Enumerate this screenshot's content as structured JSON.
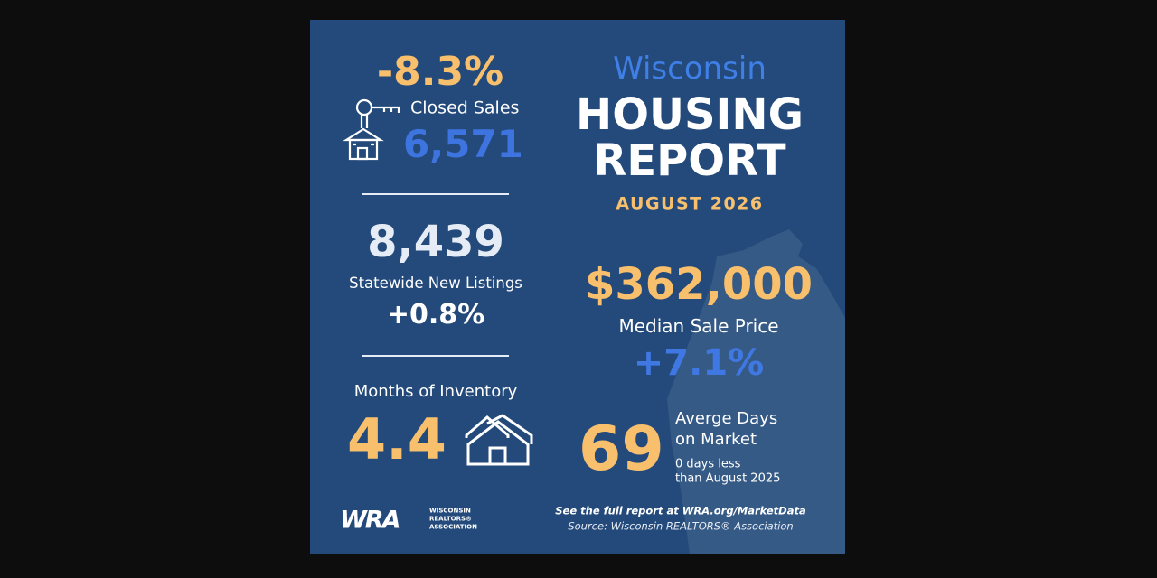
{
  "left": {
    "closed_sales": {
      "change": "-8.3%",
      "label": "Closed Sales",
      "value": "6,571"
    },
    "new_listings": {
      "value": "8,439",
      "label": "Statewide New Listings",
      "change": "+0.8%"
    },
    "inventory": {
      "label": "Months of Inventory",
      "value": "4.4"
    }
  },
  "header": {
    "region": "Wisconsin",
    "title_lines": [
      "HOUSING",
      "REPORT"
    ],
    "period": "AUGUST 2026"
  },
  "right": {
    "median_price": {
      "value": "$362,000",
      "label": "Median Sale Price",
      "change": "+7.1%"
    },
    "days_on_market": {
      "value": "69",
      "label_lines": [
        "Averge Days",
        "on Market"
      ],
      "note_lines": [
        "0 days less",
        "than August 2025"
      ]
    }
  },
  "footer": {
    "link_text": "See the full report at WRA.org/MarketData",
    "source": "Source: Wisconsin REALTORS® Association",
    "logo": {
      "mark": "WRA",
      "lines": [
        "WISCONSIN",
        "REALTORS®",
        "ASSOCIATION"
      ]
    }
  }
}
